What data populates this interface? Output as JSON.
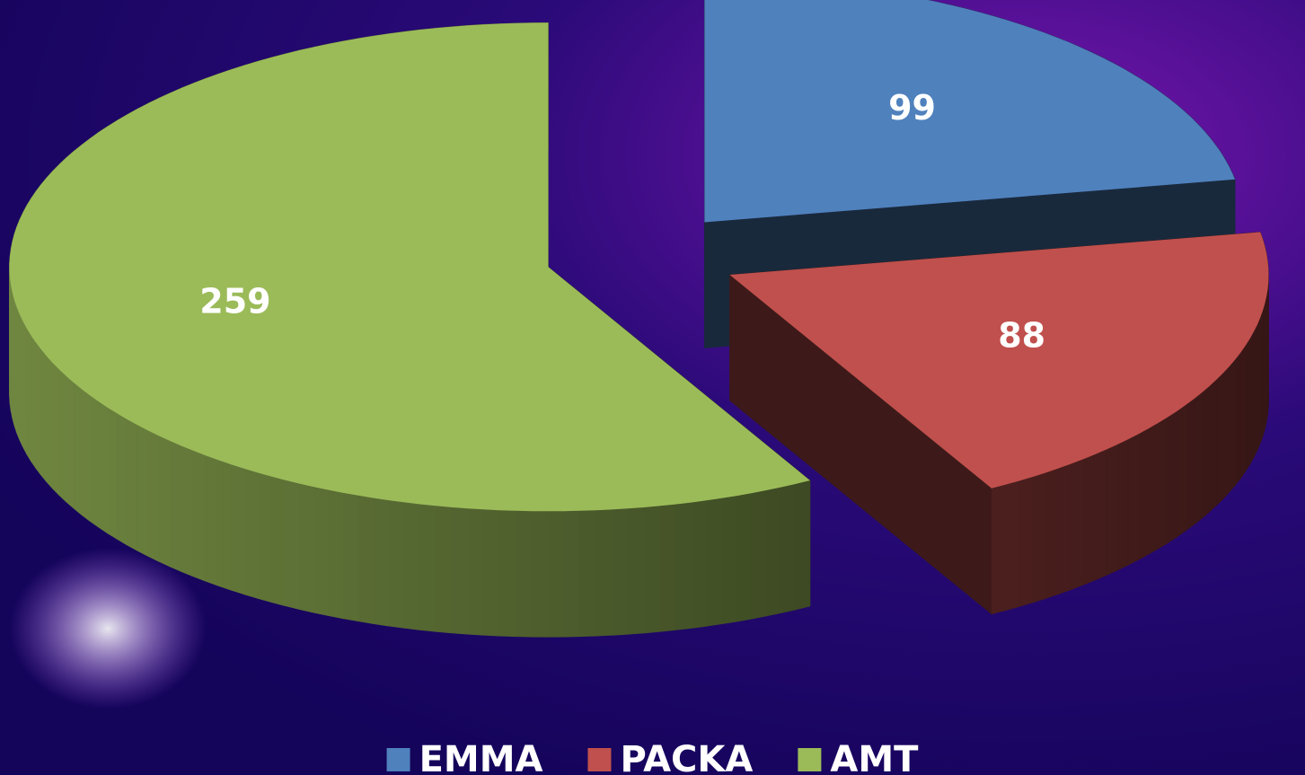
{
  "chart_data": {
    "type": "pie",
    "categories": [
      "EMMA",
      "PACKA",
      "AMT"
    ],
    "values": [
      99,
      88,
      259
    ],
    "colors": [
      "#4f81bd",
      "#c0504d",
      "#9bbb59"
    ],
    "legend": "bottom"
  }
}
